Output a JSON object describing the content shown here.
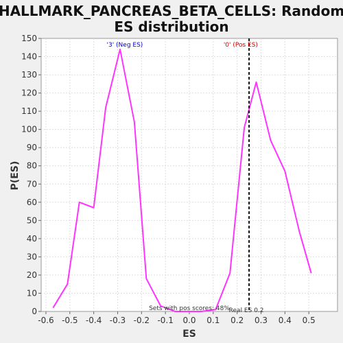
{
  "chart_data": {
    "type": "line",
    "title_line1": "HALLMARK_PANCREAS_BETA_CELLS: Random",
    "title_line2": "ES distribution",
    "xlabel": "ES",
    "ylabel": "P(ES)",
    "xlim": [
      -0.62,
      0.62
    ],
    "ylim": [
      0,
      150
    ],
    "xticks": [
      "-0.6",
      "-0.5",
      "-0.4",
      "-0.3",
      "-0.2",
      "-0.1",
      "0.0",
      "0.1",
      "0.2",
      "0.3",
      "0.4",
      "0.5"
    ],
    "xtick_values": [
      -0.6,
      -0.5,
      -0.4,
      -0.3,
      -0.2,
      -0.1,
      0.0,
      0.1,
      0.2,
      0.3,
      0.4,
      0.5
    ],
    "yticks": [
      0,
      10,
      20,
      30,
      40,
      50,
      60,
      70,
      80,
      90,
      100,
      110,
      120,
      130,
      140,
      150
    ],
    "grid": true,
    "series": [
      {
        "color": "#ff33ff",
        "x": [
          -0.57,
          -0.51,
          -0.46,
          -0.4,
          -0.35,
          -0.29,
          -0.23,
          -0.18,
          -0.12,
          -0.06,
          0.0,
          0.05,
          0.11,
          0.17,
          0.23,
          0.28,
          0.34,
          0.4,
          0.46,
          0.51
        ],
        "y": [
          2,
          15,
          60,
          57,
          112,
          144,
          104,
          18,
          3,
          0,
          0,
          0,
          1,
          21,
          101,
          126,
          94,
          77,
          44,
          21
        ]
      }
    ],
    "vline": {
      "x": 0.25,
      "label": "Real ES 0.2"
    },
    "annotations": {
      "neg_label": "'3' (Neg ES)",
      "neg_color": "#0000cc",
      "pos_label": "'0' (Pos ES)",
      "pos_color": "#cc0000",
      "pos_scores_label": "Sets with pos scores: 48%"
    }
  }
}
